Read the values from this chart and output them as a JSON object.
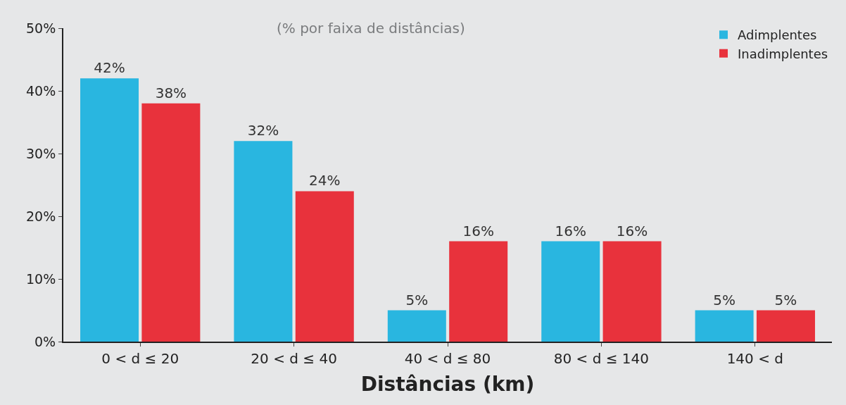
{
  "chart_data": {
    "type": "bar",
    "title": "(% por faixa de distâncias)",
    "xlabel": "Distâncias (km)",
    "categories": [
      "0 < d ≤ 20",
      "20 < d ≤ 40",
      "40 < d ≤ 80",
      "80 < d ≤ 140",
      "140 < d"
    ],
    "series": [
      {
        "name": "Adimplentes",
        "color": "#29b6e0",
        "values": [
          42,
          32,
          5,
          16,
          5
        ],
        "value_labels": [
          "42%",
          "32%",
          "5%",
          "16%",
          "5%"
        ]
      },
      {
        "name": "Inadimplentes",
        "color": "#e8323c",
        "values": [
          38,
          24,
          16,
          16,
          5
        ],
        "value_labels": [
          "38%",
          "24%",
          "16%",
          "16%",
          "5%"
        ]
      }
    ],
    "ylim": [
      0,
      50
    ],
    "yticks": [
      {
        "value": 0,
        "label": "0%"
      },
      {
        "value": 10,
        "label": "10%"
      },
      {
        "value": 20,
        "label": "20%"
      },
      {
        "value": 30,
        "label": "30%"
      },
      {
        "value": 40,
        "label": "40%"
      },
      {
        "value": 50,
        "label": "50%"
      }
    ],
    "grid": false,
    "legend": "top right"
  }
}
